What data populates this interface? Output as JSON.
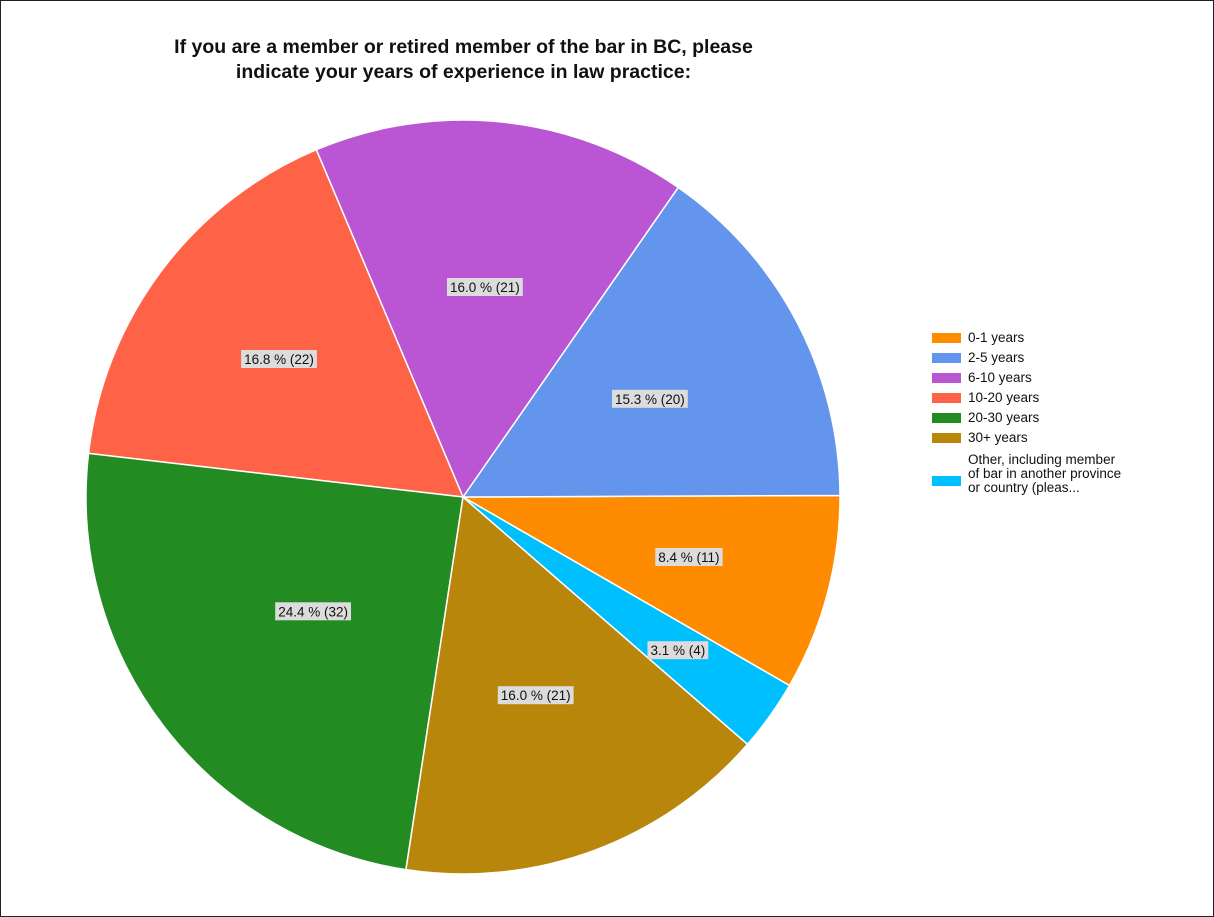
{
  "chart_data": {
    "type": "pie",
    "title_lines": [
      "If you are a member or retired member of the bar in BC, please",
      "indicate your years of experience in law practice:"
    ],
    "slices": [
      {
        "name": "0-1 years",
        "value": 11,
        "percent": 8.4,
        "label": "8.4 % (11)",
        "color": "#ff8c00"
      },
      {
        "name": "2-5 years",
        "value": 20,
        "percent": 15.3,
        "label": "15.3 % (20)",
        "color": "#6495ed"
      },
      {
        "name": "6-10 years",
        "value": 21,
        "percent": 16.0,
        "label": "16.0 % (21)",
        "color": "#ba55d3"
      },
      {
        "name": "10-20 years",
        "value": 22,
        "percent": 16.8,
        "label": "16.8 % (22)",
        "color": "#ff6347"
      },
      {
        "name": "20-30 years",
        "value": 32,
        "percent": 24.4,
        "label": "24.4 % (32)",
        "color": "#228b22"
      },
      {
        "name": "30+ years",
        "value": 21,
        "percent": 16.0,
        "label": "16.0 % (21)",
        "color": "#b8860b"
      },
      {
        "name": "Other, including member\nof bar in another province\nor country  (pleas...",
        "value": 4,
        "percent": 3.1,
        "label": "3.1 % (4)",
        "color": "#00bfff"
      }
    ],
    "legend_position": "right"
  }
}
